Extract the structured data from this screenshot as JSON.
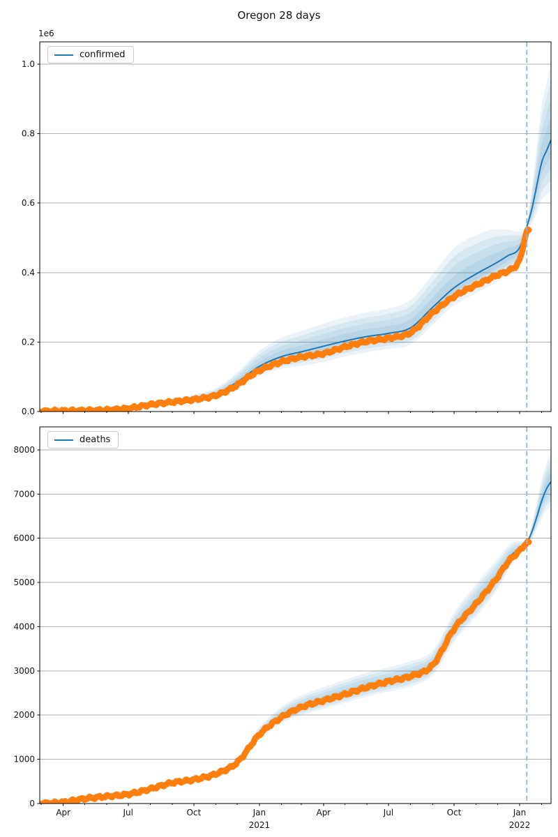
{
  "title": "Oregon 28 days",
  "colors": {
    "observed": "#ff7f0e",
    "model": "#1f77b4",
    "band": "#1f77b4",
    "forecast_vline": "#8fbbd9",
    "grid": "#b0b0b0",
    "spine": "#000000",
    "text": "#151515"
  },
  "x_axis": {
    "start": "2020-02-28",
    "end": "2022-02-14",
    "forecast_start": "2022-01-11",
    "major_ticks": [
      {
        "date": "2020-04-01",
        "label": "Apr"
      },
      {
        "date": "2020-07-01",
        "label": "Jul"
      },
      {
        "date": "2020-10-01",
        "label": "Oct"
      },
      {
        "date": "2021-01-01",
        "label": "Jan",
        "year": "2021"
      },
      {
        "date": "2021-04-01",
        "label": "Apr"
      },
      {
        "date": "2021-07-01",
        "label": "Jul"
      },
      {
        "date": "2021-10-01",
        "label": "Oct"
      },
      {
        "date": "2022-01-01",
        "label": "Jan",
        "year": "2022"
      }
    ]
  },
  "chart_data": [
    {
      "type": "line",
      "name": "confirmed",
      "legend": "confirmed",
      "y_offset_label": "1e6",
      "ylim": [
        0,
        1064000
      ],
      "grid": true,
      "legend_position": "upper left",
      "y_ticks": [
        {
          "v": 0,
          "label": "0.0"
        },
        {
          "v": 200000,
          "label": "0.2"
        },
        {
          "v": 400000,
          "label": "0.4"
        },
        {
          "v": 600000,
          "label": "0.6"
        },
        {
          "v": 800000,
          "label": "0.8"
        },
        {
          "v": 1000000,
          "label": "1.0"
        }
      ],
      "series": [
        {
          "name": "confirmed observed",
          "role": "observed",
          "points": [
            [
              "2020-03-01",
              500
            ],
            [
              "2020-04-01",
              2100
            ],
            [
              "2020-05-01",
              2700
            ],
            [
              "2020-06-01",
              4400
            ],
            [
              "2020-07-01",
              9000
            ],
            [
              "2020-08-01",
              19500
            ],
            [
              "2020-09-01",
              27500
            ],
            [
              "2020-10-01",
              34500
            ],
            [
              "2020-11-01",
              46500
            ],
            [
              "2020-12-01",
              76000
            ],
            [
              "2020-12-15",
              97000
            ],
            [
              "2021-01-01",
              118000
            ],
            [
              "2021-02-01",
              143000
            ],
            [
              "2021-03-01",
              157000
            ],
            [
              "2021-04-01",
              167000
            ],
            [
              "2021-05-01",
              186000
            ],
            [
              "2021-06-01",
              202000
            ],
            [
              "2021-07-01",
              211000
            ],
            [
              "2021-08-01",
              227000
            ],
            [
              "2021-09-01",
              284000
            ],
            [
              "2021-10-01",
              331000
            ],
            [
              "2021-11-01",
              364000
            ],
            [
              "2021-12-01",
              393000
            ],
            [
              "2021-12-20",
              409000
            ],
            [
              "2021-12-28",
              422000
            ],
            [
              "2022-01-03",
              448000
            ],
            [
              "2022-01-07",
              487000
            ],
            [
              "2022-01-11",
              518000
            ],
            [
              "2022-01-14",
              521000
            ]
          ]
        },
        {
          "name": "confirmed forecast",
          "role": "model",
          "points": [
            [
              "2020-03-01",
              2000,
              0,
              0
            ],
            [
              "2020-04-01",
              3500,
              1500,
              2000
            ],
            [
              "2020-05-01",
              3800,
              1500,
              2500
            ],
            [
              "2020-06-01",
              6000,
              2000,
              3500
            ],
            [
              "2020-07-01",
              11000,
              3000,
              5000
            ],
            [
              "2020-08-01",
              21000,
              4000,
              7000
            ],
            [
              "2020-09-01",
              29000,
              5000,
              9000
            ],
            [
              "2020-10-01",
              37000,
              6000,
              12000
            ],
            [
              "2020-11-01",
              50000,
              9000,
              18000
            ],
            [
              "2020-12-01",
              85000,
              15000,
              28000
            ],
            [
              "2021-01-01",
              130000,
              28000,
              45000
            ],
            [
              "2021-02-01",
              158000,
              35000,
              55000
            ],
            [
              "2021-03-01",
              172000,
              40000,
              60000
            ],
            [
              "2021-04-01",
              188000,
              45000,
              65000
            ],
            [
              "2021-05-01",
              203000,
              45000,
              68000
            ],
            [
              "2021-06-01",
              216000,
              45000,
              70000
            ],
            [
              "2021-07-01",
              225000,
              45000,
              72000
            ],
            [
              "2021-08-01",
              241000,
              48000,
              80000
            ],
            [
              "2021-09-01",
              300000,
              50000,
              95000
            ],
            [
              "2021-10-01",
              356000,
              50000,
              115000
            ],
            [
              "2021-11-01",
              396000,
              55000,
              112000
            ],
            [
              "2021-12-01",
              430000,
              55000,
              95000
            ],
            [
              "2021-12-15",
              448000,
              50000,
              75000
            ],
            [
              "2022-01-01",
              472000,
              35000,
              45000
            ],
            [
              "2022-01-11",
              532000,
              9000,
              10000
            ],
            [
              "2022-01-18",
              582000,
              42000,
              58000
            ],
            [
              "2022-01-25",
              650000,
              78000,
              112000
            ],
            [
              "2022-02-01",
              718000,
              108000,
              165000
            ],
            [
              "2022-02-08",
              752000,
              128000,
              195000
            ],
            [
              "2022-02-14",
              782000,
              150000,
              225000
            ]
          ]
        }
      ]
    },
    {
      "type": "line",
      "name": "deaths",
      "legend": "deaths",
      "y_offset_label": "",
      "ylim": [
        0,
        8520
      ],
      "grid": true,
      "legend_position": "upper left",
      "y_ticks": [
        {
          "v": 0,
          "label": "0"
        },
        {
          "v": 1000,
          "label": "1000"
        },
        {
          "v": 2000,
          "label": "2000"
        },
        {
          "v": 3000,
          "label": "3000"
        },
        {
          "v": 4000,
          "label": "4000"
        },
        {
          "v": 5000,
          "label": "5000"
        },
        {
          "v": 6000,
          "label": "6000"
        },
        {
          "v": 7000,
          "label": "7000"
        },
        {
          "v": 8000,
          "label": "8000"
        }
      ],
      "series": [
        {
          "name": "deaths observed",
          "role": "observed",
          "points": [
            [
              "2020-03-01",
              2
            ],
            [
              "2020-04-01",
              30
            ],
            [
              "2020-05-01",
              110
            ],
            [
              "2020-06-01",
              160
            ],
            [
              "2020-07-01",
              210
            ],
            [
              "2020-08-01",
              330
            ],
            [
              "2020-09-01",
              470
            ],
            [
              "2020-10-01",
              540
            ],
            [
              "2020-11-01",
              670
            ],
            [
              "2020-12-01",
              930
            ],
            [
              "2021-01-01",
              1560
            ],
            [
              "2021-02-01",
              1950
            ],
            [
              "2021-03-01",
              2180
            ],
            [
              "2021-04-01",
              2330
            ],
            [
              "2021-05-01",
              2470
            ],
            [
              "2021-06-01",
              2630
            ],
            [
              "2021-07-01",
              2760
            ],
            [
              "2021-08-01",
              2880
            ],
            [
              "2021-09-01",
              3130
            ],
            [
              "2021-10-01",
              3950
            ],
            [
              "2021-11-01",
              4520
            ],
            [
              "2021-12-01",
              5120
            ],
            [
              "2021-12-15",
              5450
            ],
            [
              "2022-01-01",
              5720
            ],
            [
              "2022-01-11",
              5890
            ],
            [
              "2022-01-14",
              5900
            ]
          ]
        },
        {
          "name": "deaths forecast",
          "role": "model",
          "points": [
            [
              "2020-03-01",
              5,
              0,
              0
            ],
            [
              "2020-04-01",
              35,
              10,
              15
            ],
            [
              "2020-05-01",
              110,
              15,
              25
            ],
            [
              "2020-06-01",
              165,
              20,
              30
            ],
            [
              "2020-07-01",
              215,
              25,
              35
            ],
            [
              "2020-08-01",
              335,
              30,
              45
            ],
            [
              "2020-09-01",
              475,
              35,
              55
            ],
            [
              "2020-10-01",
              545,
              40,
              60
            ],
            [
              "2020-11-01",
              680,
              50,
              75
            ],
            [
              "2020-12-01",
              950,
              70,
              100
            ],
            [
              "2021-01-01",
              1570,
              120,
              160
            ],
            [
              "2021-02-01",
              1970,
              160,
              220
            ],
            [
              "2021-03-01",
              2190,
              190,
              260
            ],
            [
              "2021-04-01",
              2350,
              210,
              280
            ],
            [
              "2021-05-01",
              2500,
              220,
              300
            ],
            [
              "2021-06-01",
              2650,
              230,
              310
            ],
            [
              "2021-07-01",
              2770,
              240,
              310
            ],
            [
              "2021-08-01",
              2900,
              250,
              320
            ],
            [
              "2021-09-01",
              3160,
              260,
              300
            ],
            [
              "2021-10-01",
              3960,
              300,
              360
            ],
            [
              "2021-11-01",
              4560,
              330,
              400
            ],
            [
              "2021-12-01",
              5160,
              310,
              380
            ],
            [
              "2021-12-20",
              5610,
              230,
              280
            ],
            [
              "2022-01-01",
              5760,
              140,
              170
            ],
            [
              "2022-01-11",
              5895,
              35,
              40
            ],
            [
              "2022-01-18",
              6140,
              150,
              180
            ],
            [
              "2022-01-25",
              6480,
              280,
              330
            ],
            [
              "2022-02-01",
              6850,
              400,
              480
            ],
            [
              "2022-02-08",
              7130,
              490,
              580
            ],
            [
              "2022-02-14",
              7280,
              560,
              660
            ]
          ]
        }
      ]
    }
  ]
}
